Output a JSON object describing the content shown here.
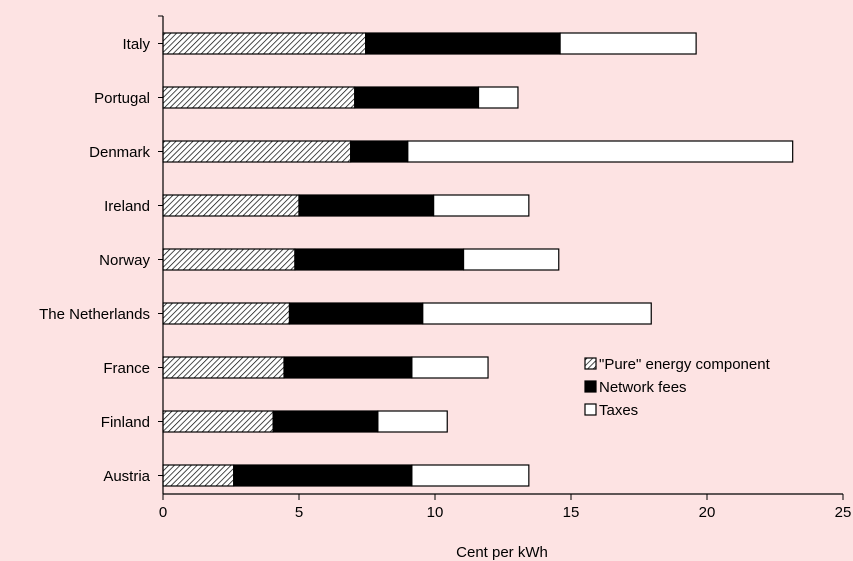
{
  "chart_data": {
    "type": "bar",
    "orientation": "horizontal",
    "stacked": true,
    "categories": [
      "Italy",
      "Portugal",
      "Denmark",
      "Ireland",
      "Norway",
      "The Netherlands",
      "France",
      "Finland",
      "Austria"
    ],
    "series": [
      {
        "name": "\"Pure\" energy component",
        "pattern": "hatched",
        "values": [
          7.45,
          7.05,
          6.9,
          5.0,
          4.85,
          4.65,
          4.45,
          4.05,
          2.6
        ]
      },
      {
        "name": "Network fees",
        "color": "#000000",
        "values": [
          7.15,
          4.55,
          2.1,
          4.95,
          6.2,
          4.9,
          4.7,
          3.85,
          6.55
        ]
      },
      {
        "name": "Taxes",
        "color": "#ffffff",
        "values": [
          5.0,
          1.45,
          14.15,
          3.5,
          3.5,
          8.4,
          2.8,
          2.55,
          4.3
        ]
      }
    ],
    "x_ticks": [
      0,
      5,
      10,
      15,
      20,
      25
    ],
    "xlim": [
      0,
      25
    ],
    "xlabel": "Cent per kWh",
    "ylabel": "",
    "title": "",
    "grid": false,
    "legend_position": "lower-right",
    "colors": {
      "background": "#fde3e3",
      "axis": "#000000"
    }
  }
}
